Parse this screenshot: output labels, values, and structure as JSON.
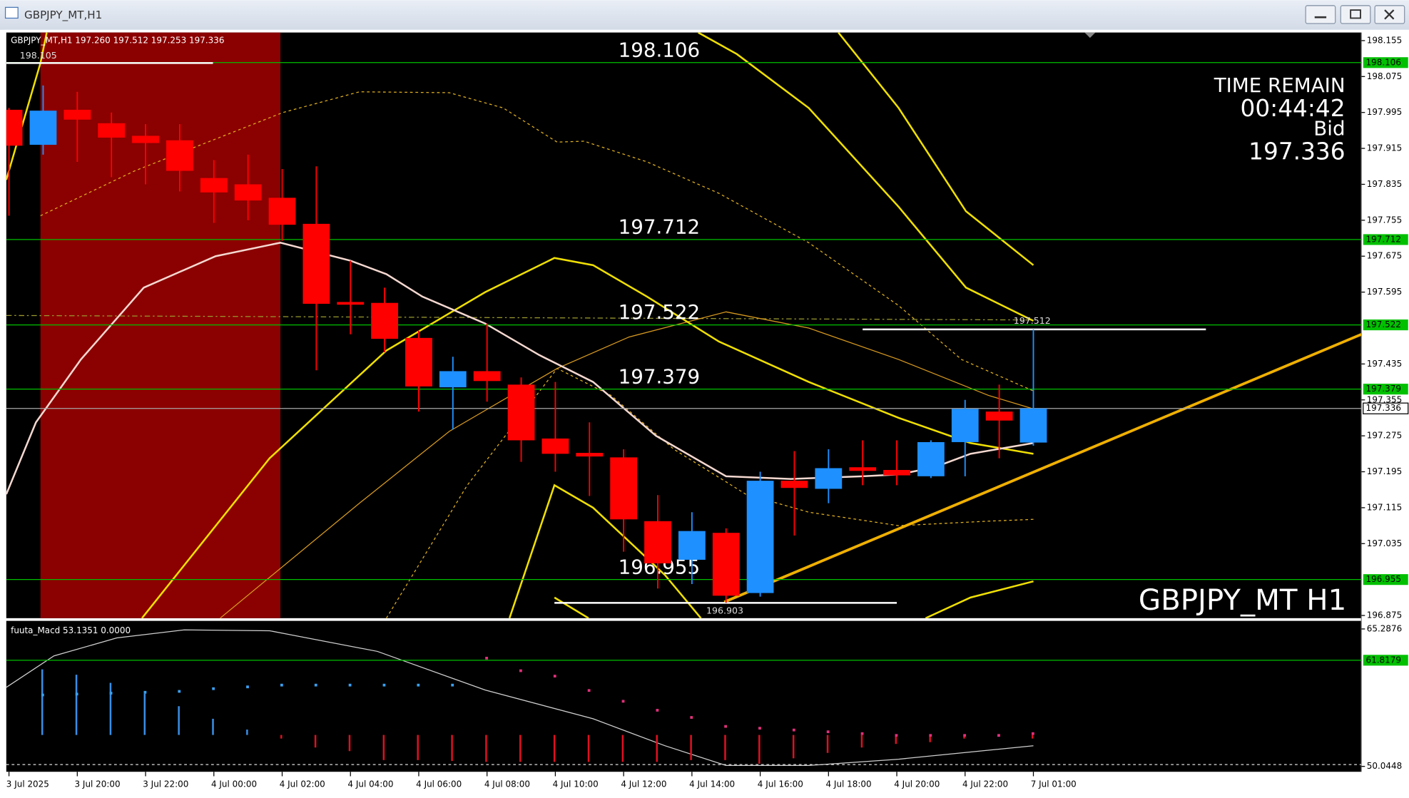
{
  "window_title": "GBPJPY_MT,H1",
  "chart_data": {
    "type": "candlestick",
    "info": "GBPJPY_MT,H1 197.260 197.512 197.253 197.336",
    "categories": [
      "3 Jul 2025",
      null,
      "3 Jul 20:00",
      null,
      "3 Jul 22:00",
      null,
      "4 Jul 00:00",
      null,
      "4 Jul 02:00",
      null,
      "4 Jul 04:00",
      null,
      "4 Jul 06:00",
      null,
      "4 Jul 08:00",
      null,
      "4 Jul 10:00",
      null,
      "4 Jul 12:00",
      null,
      "4 Jul 14:00",
      null,
      "4 Jul 16:00",
      null,
      "4 Jul 18:00",
      null,
      "4 Jul 20:00",
      null,
      "4 Jul 22:00",
      null,
      "7 Jul 01:00"
    ],
    "open": [
      198.001,
      197.923,
      198.001,
      197.971,
      197.943,
      197.933,
      197.849,
      197.835,
      197.805,
      197.747,
      197.573,
      197.571,
      197.493,
      197.383,
      197.419,
      197.389,
      197.269,
      197.237,
      197.227,
      197.085,
      196.999,
      197.059,
      196.925,
      197.175,
      197.157,
      197.205,
      197.199,
      197.185,
      197.261,
      197.329,
      197.26
    ],
    "high": [
      198.005,
      198.055,
      198.041,
      197.995,
      197.969,
      197.969,
      197.889,
      197.901,
      197.869,
      197.875,
      197.665,
      197.605,
      197.509,
      197.451,
      197.525,
      197.405,
      197.395,
      197.305,
      197.245,
      197.143,
      197.105,
      197.069,
      197.195,
      197.241,
      197.245,
      197.265,
      197.265,
      197.265,
      197.355,
      197.389,
      197.512
    ],
    "low": [
      197.765,
      197.901,
      197.885,
      197.851,
      197.835,
      197.819,
      197.749,
      197.755,
      197.709,
      197.421,
      197.501,
      197.461,
      197.329,
      197.289,
      197.351,
      197.217,
      197.195,
      197.141,
      197.017,
      196.935,
      196.945,
      196.903,
      196.917,
      197.053,
      197.125,
      197.165,
      197.165,
      197.181,
      197.185,
      197.225,
      197.253
    ],
    "close": [
      197.921,
      197.999,
      197.979,
      197.939,
      197.927,
      197.865,
      197.817,
      197.799,
      197.745,
      197.569,
      197.567,
      197.491,
      197.385,
      197.419,
      197.397,
      197.265,
      197.235,
      197.229,
      197.089,
      196.991,
      197.063,
      196.919,
      197.175,
      197.159,
      197.203,
      197.197,
      197.187,
      197.261,
      197.335,
      197.309,
      197.336
    ],
    "up_color": "#1e90ff",
    "down_color": "#ff0000",
    "ylim": [
      196.869,
      198.173
    ],
    "yticks": [
      198.155,
      198.075,
      197.995,
      197.915,
      197.835,
      197.755,
      197.675,
      197.595,
      197.435,
      197.355,
      197.275,
      197.195,
      197.115,
      197.035,
      196.875
    ],
    "levels": [
      198.106,
      197.712,
      197.522,
      197.379,
      196.955
    ],
    "level_color": "#00c000",
    "current_price": 197.336,
    "price_marks": [
      198.105,
      197.512,
      196.903
    ],
    "time_remain": {
      "title": "TIME REMAIN",
      "time": "00:44:42",
      "bid_label": "Bid",
      "bid": 197.336
    },
    "watermark": "GBPJPY_MT H1",
    "subpanel": {
      "label": "fuuta_Macd 53.1351 0.0000",
      "ylim": [
        49.547,
        66.085
      ],
      "yticks": [
        65.2876,
        50.0448
      ],
      "level": 61.8179
    }
  }
}
